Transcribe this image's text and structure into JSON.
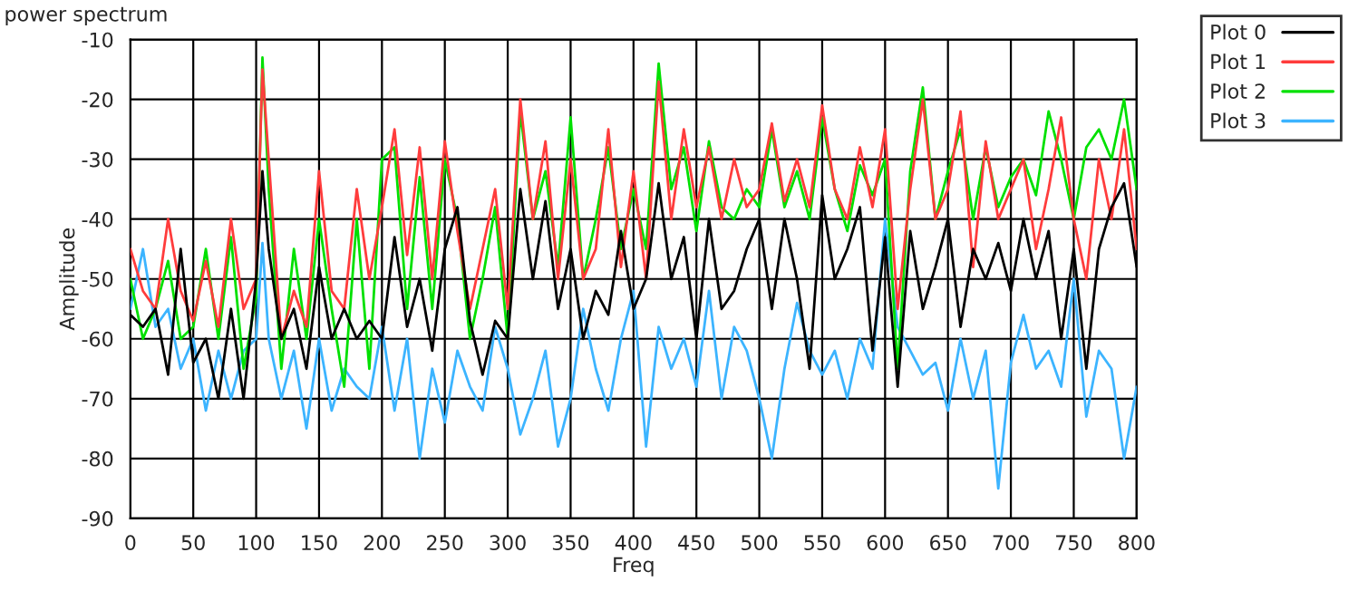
{
  "chart_data": {
    "type": "line",
    "title": "power spectrum",
    "xlabel": "Freq",
    "ylabel": "Amplitude",
    "x": [
      0,
      10,
      20,
      30,
      40,
      50,
      60,
      70,
      80,
      90,
      100,
      105,
      110,
      120,
      130,
      140,
      150,
      160,
      170,
      180,
      190,
      200,
      210,
      220,
      230,
      240,
      250,
      260,
      270,
      280,
      290,
      300,
      310,
      320,
      330,
      340,
      350,
      360,
      370,
      380,
      390,
      400,
      410,
      420,
      430,
      440,
      450,
      460,
      470,
      480,
      490,
      500,
      510,
      520,
      530,
      540,
      550,
      560,
      570,
      580,
      590,
      600,
      610,
      620,
      630,
      640,
      650,
      660,
      670,
      680,
      690,
      700,
      710,
      720,
      730,
      740,
      750,
      760,
      770,
      780,
      790,
      800
    ],
    "series": [
      {
        "name": "Plot 0",
        "color": "#000000",
        "values": [
          -56,
          -58,
          -55,
          -66,
          -45,
          -64,
          -60,
          -70,
          -55,
          -70,
          -50,
          -32,
          -45,
          -60,
          -55,
          -65,
          -48,
          -60,
          -55,
          -60,
          -57,
          -60,
          -43,
          -58,
          -50,
          -62,
          -45,
          -38,
          -57,
          -66,
          -57,
          -60,
          -35,
          -50,
          -37,
          -55,
          -45,
          -60,
          -52,
          -56,
          -42,
          -55,
          -50,
          -34,
          -50,
          -43,
          -60,
          -40,
          -55,
          -52,
          -45,
          -40,
          -55,
          -40,
          -50,
          -65,
          -36,
          -50,
          -45,
          -38,
          -62,
          -43,
          -68,
          -42,
          -55,
          -48,
          -40,
          -58,
          -45,
          -50,
          -44,
          -52,
          -40,
          -50,
          -42,
          -60,
          -45,
          -65,
          -45,
          -38,
          -34,
          -48
        ]
      },
      {
        "name": "Plot 1",
        "color": "#ff3c3c",
        "values": [
          -45,
          -52,
          -55,
          -40,
          -52,
          -57,
          -47,
          -58,
          -40,
          -55,
          -50,
          -15,
          -30,
          -60,
          -52,
          -58,
          -32,
          -52,
          -55,
          -35,
          -50,
          -38,
          -25,
          -46,
          -28,
          -50,
          -27,
          -42,
          -55,
          -45,
          -35,
          -55,
          -20,
          -40,
          -27,
          -50,
          -30,
          -50,
          -45,
          -25,
          -48,
          -32,
          -50,
          -17,
          -40,
          -25,
          -38,
          -28,
          -40,
          -30,
          -38,
          -35,
          -24,
          -37,
          -30,
          -38,
          -21,
          -35,
          -40,
          -28,
          -38,
          -25,
          -55,
          -35,
          -20,
          -40,
          -35,
          -22,
          -48,
          -27,
          -40,
          -35,
          -30,
          -45,
          -35,
          -23,
          -40,
          -50,
          -30,
          -40,
          -25,
          -45
        ]
      },
      {
        "name": "Plot 2",
        "color": "#00e000",
        "values": [
          -50,
          -60,
          -55,
          -47,
          -60,
          -58,
          -45,
          -60,
          -43,
          -65,
          -53,
          -13,
          -35,
          -65,
          -45,
          -60,
          -40,
          -55,
          -68,
          -40,
          -65,
          -30,
          -28,
          -55,
          -33,
          -55,
          -30,
          -40,
          -60,
          -50,
          -38,
          -60,
          -22,
          -40,
          -32,
          -48,
          -23,
          -50,
          -40,
          -28,
          -45,
          -35,
          -45,
          -14,
          -35,
          -28,
          -42,
          -27,
          -38,
          -40,
          -35,
          -38,
          -25,
          -38,
          -32,
          -40,
          -23,
          -35,
          -42,
          -31,
          -36,
          -30,
          -65,
          -32,
          -18,
          -40,
          -32,
          -25,
          -40,
          -28,
          -38,
          -33,
          -30,
          -36,
          -22,
          -30,
          -40,
          -28,
          -25,
          -30,
          -20,
          -35
        ]
      },
      {
        "name": "Plot 3",
        "color": "#3cb4ff",
        "values": [
          -55,
          -45,
          -58,
          -55,
          -65,
          -60,
          -72,
          -62,
          -70,
          -62,
          -60,
          -44,
          -60,
          -70,
          -62,
          -75,
          -60,
          -72,
          -65,
          -68,
          -70,
          -58,
          -72,
          -60,
          -80,
          -65,
          -74,
          -62,
          -68,
          -72,
          -58,
          -65,
          -76,
          -70,
          -62,
          -78,
          -70,
          -55,
          -65,
          -72,
          -60,
          -52,
          -78,
          -58,
          -65,
          -60,
          -68,
          -52,
          -70,
          -58,
          -62,
          -70,
          -80,
          -65,
          -54,
          -62,
          -66,
          -62,
          -70,
          -60,
          -65,
          -40,
          -58,
          -62,
          -66,
          -64,
          -72,
          -60,
          -70,
          -62,
          -85,
          -64,
          -56,
          -65,
          -62,
          -68,
          -50,
          -73,
          -62,
          -65,
          -80,
          -68
        ]
      }
    ],
    "xlim": [
      0,
      800
    ],
    "xticks": [
      0,
      50,
      100,
      150,
      200,
      250,
      300,
      350,
      400,
      450,
      500,
      550,
      600,
      650,
      700,
      750,
      800
    ],
    "ylim": [
      -90,
      -10
    ],
    "yticks": [
      -10,
      -20,
      -30,
      -40,
      -50,
      -60,
      -70,
      -80,
      -90
    ],
    "grid": true,
    "legend": "top right"
  }
}
